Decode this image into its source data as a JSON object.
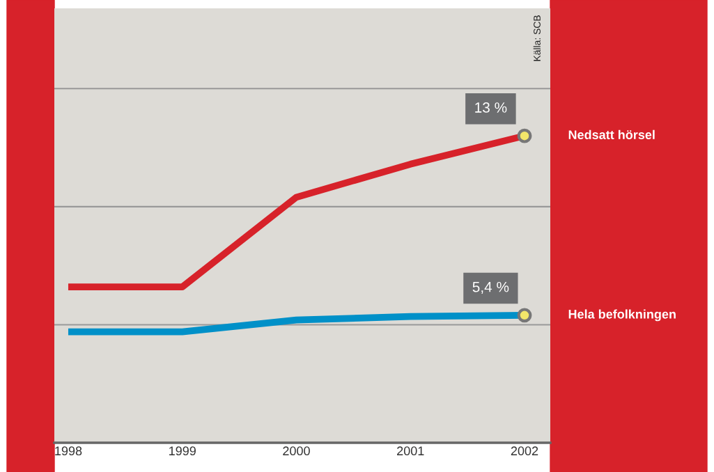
{
  "chart_data": {
    "type": "line",
    "categories": [
      "1998",
      "1999",
      "2000",
      "2001",
      "2002"
    ],
    "series": [
      {
        "name": "Nedsatt hörsel",
        "color": "#d7222a",
        "values": [
          6.6,
          6.6,
          10.4,
          11.8,
          13
        ],
        "value_labels": [
          null,
          null,
          null,
          null,
          "13 %"
        ]
      },
      {
        "name": "Hela befolkningen",
        "color": "#0090c8",
        "values": [
          4.7,
          4.7,
          5.2,
          5.35,
          5.4
        ],
        "value_labels": [
          null,
          null,
          null,
          null,
          "5,4 %"
        ]
      }
    ],
    "ylim": [
      0,
      18.4
    ],
    "yticks": [
      {
        "value": 5,
        "label": null
      },
      {
        "value": 10,
        "label": null
      },
      {
        "value": 15,
        "label": null
      }
    ],
    "grid": "y",
    "tick_labels": "x",
    "line_style": "solid",
    "annotations": [
      "Källa: SCB"
    ]
  }
}
